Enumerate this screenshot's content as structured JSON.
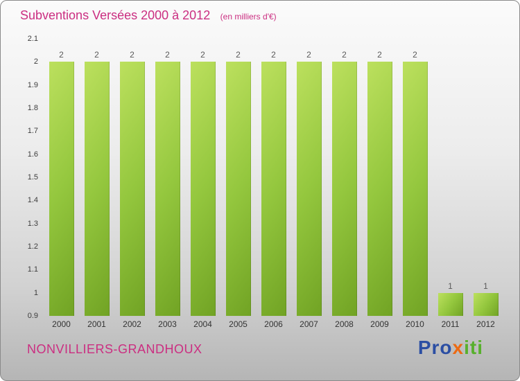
{
  "title": "Subventions Versées 2000 à 2012",
  "subtitle": "(en milliers d'€)",
  "footer": {
    "location": "NONVILLIERS-GRANDHOUX",
    "logo": {
      "pro": "Pro",
      "x": "x",
      "iti": "iti"
    }
  },
  "colors": {
    "title_pink": "#cb2e81",
    "bar_light_green": "#bce05e",
    "bar_dark_green": "#71a324",
    "logo_blue": "#2b4ea3",
    "logo_orange": "#ec6a13",
    "logo_green": "#57b02c",
    "background_top": "#fbfbfb",
    "background_bottom": "#b5b5b5"
  },
  "chart_data": {
    "type": "bar",
    "title": "Subventions Versées 2000 à 2012",
    "subtitle": "(en milliers d'€)",
    "xlabel": "",
    "ylabel": "",
    "categories": [
      "2000",
      "2001",
      "2002",
      "2003",
      "2004",
      "2005",
      "2006",
      "2007",
      "2008",
      "2009",
      "2010",
      "2011",
      "2012"
    ],
    "values": [
      2,
      2,
      2,
      2,
      2,
      2,
      2,
      2,
      2,
      2,
      2,
      1,
      1
    ],
    "ylim": [
      0.9,
      2.1
    ],
    "yticks": [
      0.9,
      1,
      1.1,
      1.2,
      1.3,
      1.4,
      1.5,
      1.6,
      1.7,
      1.8,
      1.9,
      2,
      2.1
    ],
    "grid": false,
    "legend": false,
    "bar_labels_shown": true
  }
}
